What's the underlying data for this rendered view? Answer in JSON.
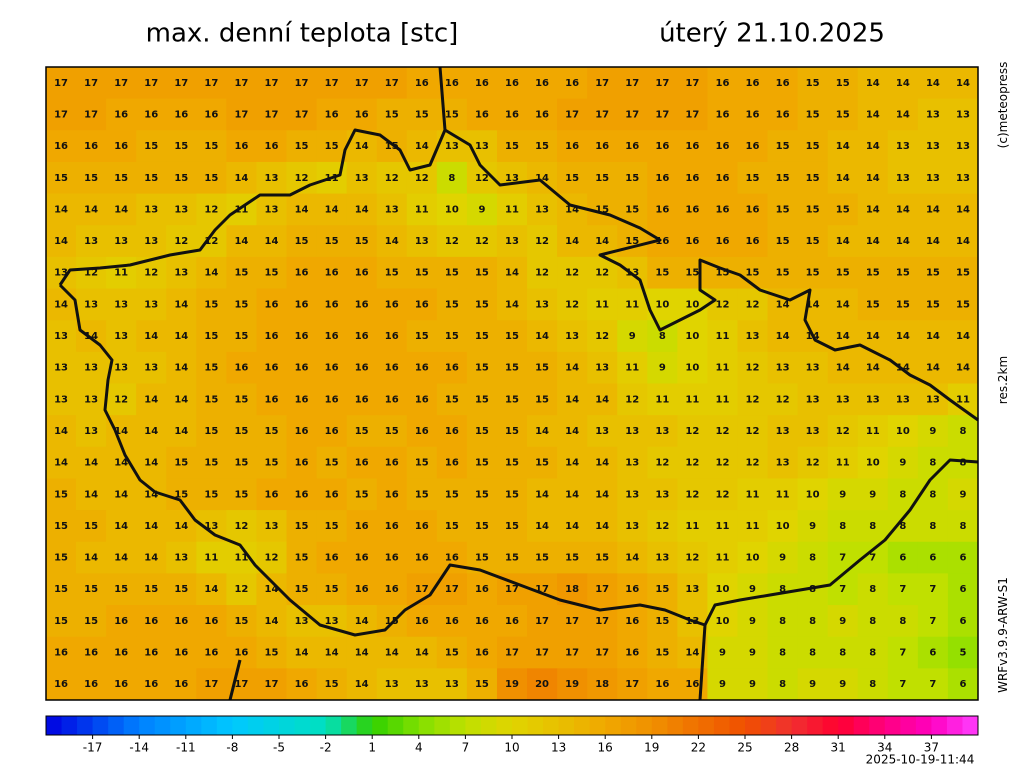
{
  "header": {
    "title": "max. denní teplota [stc]",
    "date": "úterý 21.10.2025"
  },
  "side_labels": [
    "(c)meteopress",
    "res.2km",
    "WRFv3.9.9-ARW-S1"
  ],
  "timestamp": "2025-10-19-11:44",
  "colorbar": {
    "clim": [
      -20,
      40
    ],
    "ticks": [
      -17,
      -14,
      -11,
      -8,
      -5,
      -2,
      1,
      4,
      7,
      10,
      13,
      16,
      19,
      22,
      25,
      28,
      31,
      34,
      37
    ],
    "stops": [
      [
        -20,
        "#0000e0"
      ],
      [
        -14,
        "#0080ff"
      ],
      [
        -8,
        "#00c8ff"
      ],
      [
        -2,
        "#00e0c0"
      ],
      [
        1,
        "#30d000"
      ],
      [
        4,
        "#80e000"
      ],
      [
        7,
        "#c0e000"
      ],
      [
        10,
        "#e0d400"
      ],
      [
        13,
        "#e8c000"
      ],
      [
        16,
        "#f0a800"
      ],
      [
        19,
        "#f09000"
      ],
      [
        22,
        "#f07000"
      ],
      [
        25,
        "#f05000"
      ],
      [
        28,
        "#f03030"
      ],
      [
        31,
        "#ff0030"
      ],
      [
        34,
        "#ff0080"
      ],
      [
        37,
        "#ff00c0"
      ],
      [
        40,
        "#ff40ff"
      ]
    ]
  },
  "grid": [
    [
      17,
      17,
      17,
      17,
      17,
      17,
      17,
      17,
      17,
      17,
      17,
      17,
      16,
      16,
      16,
      16,
      16,
      16,
      17,
      17,
      17,
      17,
      16,
      16,
      16,
      15,
      15,
      14,
      14,
      14,
      14
    ],
    [
      17,
      17,
      16,
      16,
      16,
      16,
      17,
      17,
      17,
      16,
      16,
      15,
      15,
      15,
      16,
      16,
      16,
      17,
      17,
      17,
      17,
      17,
      16,
      16,
      16,
      15,
      15,
      14,
      14,
      13,
      13
    ],
    [
      16,
      16,
      16,
      15,
      15,
      15,
      16,
      16,
      15,
      15,
      14,
      15,
      14,
      13,
      13,
      15,
      15,
      16,
      16,
      16,
      16,
      16,
      16,
      16,
      15,
      15,
      14,
      14,
      13,
      13,
      13
    ],
    [
      15,
      15,
      15,
      15,
      15,
      15,
      14,
      13,
      12,
      11,
      13,
      12,
      12,
      8,
      12,
      13,
      14,
      15,
      15,
      15,
      16,
      16,
      16,
      15,
      15,
      15,
      14,
      14,
      13,
      13,
      13
    ],
    [
      14,
      14,
      14,
      13,
      13,
      12,
      11,
      13,
      14,
      14,
      14,
      13,
      11,
      10,
      9,
      11,
      13,
      14,
      15,
      15,
      16,
      16,
      16,
      16,
      15,
      15,
      15,
      14,
      14,
      14,
      14
    ],
    [
      14,
      13,
      13,
      13,
      12,
      12,
      14,
      14,
      15,
      15,
      15,
      14,
      13,
      12,
      12,
      13,
      12,
      14,
      14,
      15,
      16,
      16,
      16,
      16,
      15,
      15,
      14,
      14,
      14,
      14,
      14
    ],
    [
      13,
      12,
      11,
      12,
      13,
      14,
      15,
      15,
      16,
      16,
      16,
      15,
      15,
      15,
      15,
      14,
      12,
      12,
      12,
      13,
      15,
      15,
      15,
      15,
      15,
      15,
      15,
      15,
      15,
      15,
      15
    ],
    [
      14,
      13,
      13,
      13,
      14,
      15,
      15,
      16,
      16,
      16,
      16,
      16,
      16,
      15,
      15,
      14,
      13,
      12,
      11,
      11,
      10,
      10,
      12,
      12,
      14,
      14,
      14,
      15,
      15,
      15,
      15
    ],
    [
      13,
      14,
      13,
      14,
      14,
      15,
      15,
      16,
      16,
      16,
      16,
      16,
      15,
      15,
      15,
      15,
      14,
      13,
      12,
      9,
      8,
      10,
      11,
      13,
      14,
      14,
      14,
      14,
      14,
      14,
      14
    ],
    [
      13,
      13,
      13,
      13,
      14,
      15,
      16,
      16,
      16,
      16,
      16,
      16,
      16,
      16,
      15,
      15,
      15,
      14,
      13,
      11,
      9,
      10,
      11,
      12,
      13,
      13,
      14,
      14,
      14,
      14,
      14
    ],
    [
      13,
      13,
      12,
      14,
      14,
      15,
      15,
      16,
      16,
      16,
      16,
      16,
      16,
      15,
      15,
      15,
      15,
      14,
      14,
      12,
      11,
      11,
      11,
      12,
      12,
      13,
      13,
      13,
      13,
      13,
      11
    ],
    [
      14,
      13,
      14,
      14,
      14,
      15,
      15,
      15,
      16,
      16,
      15,
      15,
      16,
      16,
      15,
      15,
      14,
      14,
      13,
      13,
      13,
      12,
      12,
      12,
      13,
      13,
      12,
      11,
      10,
      9,
      8
    ],
    [
      14,
      14,
      14,
      14,
      15,
      15,
      15,
      15,
      16,
      15,
      16,
      16,
      15,
      16,
      15,
      15,
      15,
      14,
      14,
      13,
      12,
      12,
      12,
      12,
      13,
      12,
      11,
      10,
      9,
      8,
      8
    ],
    [
      15,
      14,
      14,
      14,
      15,
      15,
      15,
      16,
      16,
      16,
      15,
      16,
      15,
      15,
      15,
      15,
      14,
      14,
      14,
      13,
      13,
      12,
      12,
      11,
      11,
      10,
      9,
      9,
      8,
      8,
      9
    ],
    [
      15,
      15,
      14,
      14,
      14,
      13,
      12,
      13,
      15,
      15,
      16,
      16,
      16,
      15,
      15,
      15,
      14,
      14,
      14,
      13,
      12,
      11,
      11,
      11,
      10,
      9,
      8,
      8,
      8,
      8,
      8
    ],
    [
      15,
      14,
      14,
      14,
      13,
      11,
      11,
      12,
      15,
      16,
      16,
      16,
      16,
      16,
      15,
      15,
      15,
      15,
      15,
      14,
      13,
      12,
      11,
      10,
      9,
      8,
      7,
      7,
      6,
      6,
      6
    ],
    [
      15,
      15,
      15,
      15,
      15,
      14,
      12,
      14,
      15,
      15,
      16,
      16,
      17,
      17,
      16,
      17,
      17,
      18,
      17,
      16,
      15,
      13,
      10,
      9,
      8,
      8,
      7,
      8,
      7,
      7,
      6
    ],
    [
      15,
      15,
      16,
      16,
      16,
      16,
      15,
      14,
      13,
      13,
      14,
      15,
      16,
      16,
      16,
      16,
      17,
      17,
      17,
      16,
      15,
      13,
      10,
      9,
      8,
      8,
      9,
      8,
      8,
      7,
      6
    ],
    [
      16,
      16,
      16,
      16,
      16,
      16,
      16,
      15,
      14,
      14,
      14,
      14,
      14,
      15,
      16,
      17,
      17,
      17,
      17,
      16,
      15,
      14,
      9,
      9,
      8,
      8,
      8,
      8,
      7,
      6,
      5
    ],
    [
      16,
      16,
      16,
      16,
      16,
      17,
      17,
      17,
      16,
      15,
      14,
      13,
      13,
      13,
      15,
      19,
      20,
      19,
      18,
      17,
      16,
      16,
      9,
      9,
      8,
      9,
      9,
      8,
      7,
      7,
      6
    ]
  ]
}
